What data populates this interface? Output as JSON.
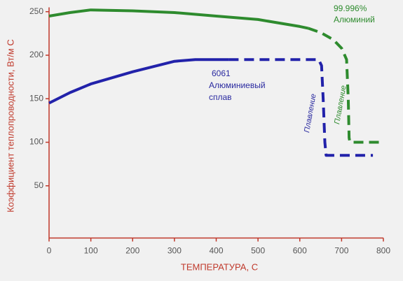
{
  "chart_data": {
    "type": "line",
    "x_label": "ТЕМПЕРАТУРА, С",
    "y_label": "Коэффициент теплопроводности, Вт/м С",
    "xlim": [
      0,
      800
    ],
    "xticks": [
      0,
      100,
      200,
      300,
      400,
      500,
      600,
      700,
      800
    ],
    "ylim": [
      -10,
      255
    ],
    "yticks": [
      50,
      100,
      150,
      200,
      250
    ],
    "axis_color": "#c0392b",
    "series": [
      {
        "color": "#2e8b2e",
        "dashed": false,
        "x": [
          0,
          50,
          100,
          200,
          300,
          400,
          500,
          600,
          620
        ],
        "values": [
          245,
          249,
          252,
          251,
          249,
          245,
          241,
          233,
          231
        ]
      },
      {
        "color": "#2e8b2e",
        "dashed": true,
        "x": [
          620,
          650,
          680,
          700,
          712,
          716,
          718,
          720,
          797
        ],
        "values": [
          231,
          226,
          218,
          208,
          195,
          150,
          105,
          100,
          100
        ]
      },
      {
        "color": "#2222aa",
        "dashed": false,
        "x": [
          0,
          50,
          100,
          200,
          300,
          350,
          430
        ],
        "values": [
          145,
          157,
          167,
          181,
          193,
          195,
          195
        ]
      },
      {
        "color": "#2222aa",
        "dashed": true,
        "x": [
          430,
          645,
          652,
          656,
          660,
          663,
          775
        ],
        "values": [
          195,
          195,
          188,
          150,
          100,
          85,
          85
        ]
      }
    ],
    "annotations": [
      "99.996%",
      "Алюминий",
      "6061",
      "Алюминиевый",
      "сплав",
      "Плавление",
      "Плавление"
    ]
  }
}
